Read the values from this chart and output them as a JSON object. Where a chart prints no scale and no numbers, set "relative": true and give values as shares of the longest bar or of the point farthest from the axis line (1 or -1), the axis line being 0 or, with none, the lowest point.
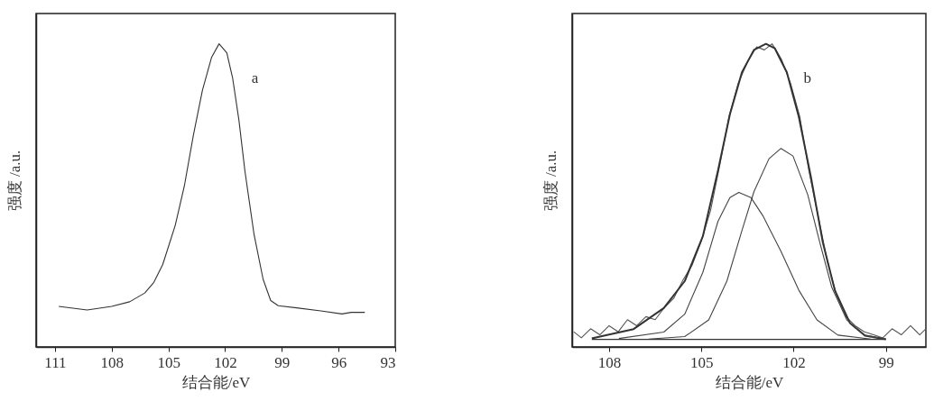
{
  "chart_data": [
    {
      "type": "line",
      "xlabel": "结合能/eV",
      "ylabel": "强度 /a.u.",
      "xlim": [
        112,
        93
      ],
      "xticks": [
        111,
        108,
        105,
        102,
        99,
        96,
        93
      ],
      "tick_labels": "x",
      "relative": true,
      "series": [
        {
          "color": "#333333",
          "x": [
            110.8,
            109.3,
            108.0,
            107.05,
            106.25,
            105.77,
            105.3,
            104.64,
            104.16,
            103.68,
            103.2,
            102.72,
            102.32,
            101.91,
            101.6,
            101.27,
            100.95,
            100.47,
            99.99,
            99.59,
            99.19,
            98.22,
            96.94,
            95.82,
            95.33,
            94.61
          ],
          "values": [
            0.134,
            0.122,
            0.134,
            0.149,
            0.178,
            0.213,
            0.272,
            0.401,
            0.53,
            0.698,
            0.847,
            0.955,
            1.0,
            0.97,
            0.886,
            0.748,
            0.579,
            0.371,
            0.223,
            0.153,
            0.136,
            0.129,
            0.119,
            0.109,
            0.114,
            0.114
          ]
        }
      ],
      "annotations": [
        "a"
      ]
    },
    {
      "type": "line",
      "xlabel": "结合能/eV",
      "ylabel": "强度 /a.u.",
      "xlim": [
        109.2,
        97.7
      ],
      "xticks": [
        108,
        105,
        102,
        99
      ],
      "tick_labels": "x",
      "relative": true,
      "series": [
        {
          "color": "#555555",
          "x": [
            109.15,
            108.9,
            108.6,
            108.3,
            108.0,
            107.7,
            107.4,
            107.1,
            106.8,
            106.5,
            106.2,
            105.9,
            105.6,
            105.3,
            105.0,
            104.7,
            104.4,
            104.1,
            103.8,
            103.5,
            103.2,
            102.95,
            102.7,
            102.4,
            102.1,
            101.8,
            101.5,
            101.2,
            100.9,
            100.6,
            100.3,
            100.0,
            99.7,
            99.4,
            99.1,
            98.8,
            98.5,
            98.2,
            97.9,
            97.7
          ],
          "values": [
            0.05,
            0.03,
            0.06,
            0.04,
            0.07,
            0.05,
            0.09,
            0.07,
            0.1,
            0.09,
            0.13,
            0.16,
            0.22,
            0.27,
            0.35,
            0.45,
            0.6,
            0.76,
            0.87,
            0.94,
            0.99,
            0.98,
            1.0,
            0.95,
            0.87,
            0.76,
            0.58,
            0.43,
            0.28,
            0.17,
            0.1,
            0.07,
            0.05,
            0.04,
            0.03,
            0.06,
            0.04,
            0.07,
            0.04,
            0.06
          ]
        },
        {
          "color": "#333333",
          "x": [
            108.56,
            107.2,
            106.22,
            105.54,
            104.95,
            104.46,
            104.07,
            103.68,
            103.29,
            102.9,
            102.61,
            102.22,
            101.83,
            101.44,
            101.05,
            100.66,
            100.17,
            99.68,
            99.0
          ],
          "values": [
            0.028,
            0.059,
            0.128,
            0.217,
            0.365,
            0.581,
            0.768,
            0.906,
            0.98,
            1.0,
            0.985,
            0.906,
            0.759,
            0.562,
            0.345,
            0.187,
            0.079,
            0.037,
            0.025
          ]
        },
        {
          "color": "#444444",
          "x": [
            107.68,
            106.22,
            105.54,
            104.95,
            104.46,
            104.07,
            103.78,
            103.39,
            103.0,
            102.41,
            101.83,
            101.24,
            100.56,
            99.49
          ],
          "values": [
            0.028,
            0.049,
            0.108,
            0.246,
            0.414,
            0.493,
            0.51,
            0.493,
            0.433,
            0.315,
            0.187,
            0.089,
            0.039,
            0.026
          ]
        },
        {
          "color": "#444444",
          "x": [
            106.71,
            105.54,
            104.76,
            104.17,
            103.68,
            103.29,
            102.8,
            102.41,
            102.02,
            101.54,
            101.15,
            100.76,
            100.27,
            99.68,
            99.0
          ],
          "values": [
            0.026,
            0.034,
            0.089,
            0.217,
            0.384,
            0.512,
            0.621,
            0.655,
            0.63,
            0.502,
            0.345,
            0.197,
            0.089,
            0.039,
            0.026
          ]
        },
        {
          "color": "#333333",
          "x": [
            108.56,
            99.0
          ],
          "values": [
            0.025,
            0.025
          ]
        }
      ],
      "annotations": [
        "b"
      ]
    }
  ]
}
